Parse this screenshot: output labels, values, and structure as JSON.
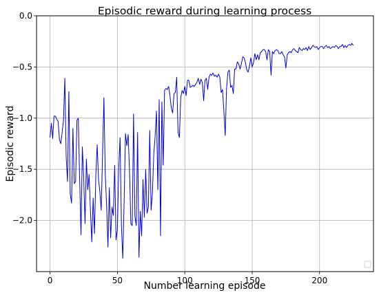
{
  "chart_data": {
    "type": "line",
    "title": "Episodic reward during learning process",
    "xlabel": "Number learning episode",
    "ylabel": "Episodic reward",
    "xlim": [
      -10,
      240
    ],
    "ylim": [
      -2.5,
      0.0
    ],
    "xticks": [
      0,
      50,
      100,
      150,
      200
    ],
    "yticks": [
      0.0,
      -0.5,
      -1.0,
      -1.5,
      -2.0
    ],
    "xtick_labels": [
      "0",
      "50",
      "100",
      "150",
      "200"
    ],
    "ytick_labels": [
      "0.0",
      "−0.5",
      "−1.0",
      "−1.5",
      "−2.0"
    ],
    "grid": true,
    "legend_position": "bottom-right",
    "line_color": "#0000d8",
    "series": [
      {
        "values": [
          -1.19,
          -1.05,
          -1.2,
          -0.98,
          -0.98,
          -1.01,
          -1.03,
          -1.21,
          -1.25,
          -1.14,
          -1.02,
          -0.61,
          -1.38,
          -1.62,
          -0.74,
          -1.74,
          -1.83,
          -1.1,
          -1.64,
          -1.62,
          -1.02,
          -1.0,
          -1.6,
          -2.14,
          -1.28,
          -1.58,
          -2.03,
          -1.4,
          -1.7,
          -1.55,
          -1.9,
          -2.21,
          -1.78,
          -2.13,
          -1.56,
          -1.26,
          -1.6,
          -1.72,
          -1.9,
          -1.35,
          -0.8,
          -1.55,
          -1.85,
          -2.26,
          -1.68,
          -2.17,
          -1.87,
          -1.95,
          -1.46,
          -2.19,
          -2.09,
          -1.48,
          -1.19,
          -2.05,
          -2.37,
          -1.82,
          -1.15,
          -1.27,
          -1.16,
          -1.52,
          -2.03,
          -2.05,
          -0.96,
          -1.96,
          -2.05,
          -1.14,
          -2.36,
          -1.91,
          -2.15,
          -1.6,
          -1.97,
          -1.5,
          -1.93,
          -1.87,
          -1.12,
          -1.9,
          -1.73,
          -1.35,
          -1.18,
          -0.93,
          -1.7,
          -0.82,
          -2.15,
          -0.84,
          -1.46,
          -0.73,
          -0.71,
          -0.72,
          -0.69,
          -0.78,
          -0.9,
          -0.95,
          -0.76,
          -0.75,
          -0.6,
          -1.14,
          -1.19,
          -0.8,
          -0.73,
          -0.76,
          -0.69,
          -0.78,
          -0.63,
          -0.63,
          -0.7,
          -0.69,
          -0.68,
          -0.69,
          -0.67,
          -0.65,
          -0.61,
          -0.67,
          -0.62,
          -0.65,
          -0.83,
          -0.63,
          -0.61,
          -0.72,
          -0.6,
          -0.57,
          -0.58,
          -0.56,
          -0.59,
          -0.58,
          -0.6,
          -0.57,
          -0.6,
          -0.75,
          -0.72,
          -0.93,
          -1.17,
          -0.71,
          -0.55,
          -0.53,
          -0.7,
          -0.68,
          -0.76,
          -0.52,
          -0.52,
          -0.45,
          -0.47,
          -0.52,
          -0.47,
          -0.4,
          -0.41,
          -0.46,
          -0.53,
          -0.55,
          -0.49,
          -0.41,
          -0.5,
          -0.46,
          -0.37,
          -0.43,
          -0.38,
          -0.43,
          -0.36,
          -0.35,
          -0.33,
          -0.33,
          -0.35,
          -0.43,
          -0.33,
          -0.35,
          -0.58,
          -0.35,
          -0.37,
          -0.34,
          -0.33,
          -0.34,
          -0.37,
          -0.37,
          -0.35,
          -0.38,
          -0.4,
          -0.51,
          -0.38,
          -0.36,
          -0.35,
          -0.36,
          -0.33,
          -0.32,
          -0.34,
          -0.35,
          -0.36,
          -0.31,
          -0.33,
          -0.34,
          -0.32,
          -0.33,
          -0.31,
          -0.34,
          -0.3,
          -0.33,
          -0.31,
          -0.29,
          -0.3,
          -0.31,
          -0.3,
          -0.33,
          -0.31,
          -0.3,
          -0.3,
          -0.32,
          -0.3,
          -0.29,
          -0.31,
          -0.3,
          -0.32,
          -0.31,
          -0.3,
          -0.31,
          -0.29,
          -0.3,
          -0.32,
          -0.3,
          -0.3,
          -0.28,
          -0.31,
          -0.29,
          -0.31,
          -0.29,
          -0.28,
          -0.29,
          -0.27,
          -0.29
        ]
      }
    ]
  }
}
